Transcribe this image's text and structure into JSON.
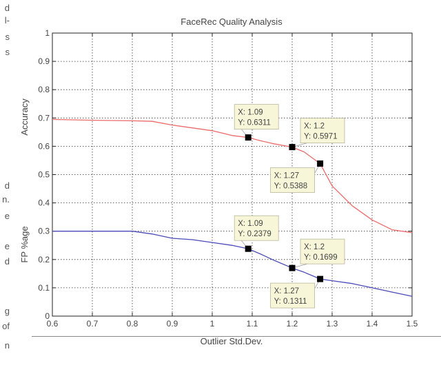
{
  "margin_text": [
    "d",
    "l-",
    "s",
    "s",
    "d",
    "n.",
    "e",
    "e",
    "d",
    "g",
    "of",
    "n"
  ],
  "chart_data": {
    "type": "line",
    "title": "FaceRec Quality Analysis",
    "xlabel": "Outlier Std.Dev.",
    "ylabels": [
      "Accuracy",
      "FP %age"
    ],
    "xlim": [
      0.6,
      1.5
    ],
    "ylim": [
      0,
      1
    ],
    "x_ticks": [
      "0.6",
      "0.7",
      "0.8",
      "0.9",
      "1",
      "1.1",
      "1.2",
      "1.3",
      "1.4",
      "1.5"
    ],
    "y_ticks": [
      "0",
      "0.1",
      "0.2",
      "0.3",
      "0.4",
      "0.5",
      "0.6",
      "0.7",
      "0.8",
      "0.9",
      "1"
    ],
    "grid": true,
    "series": [
      {
        "color": "#ec6a6a",
        "x": [
          0.6,
          0.7,
          0.8,
          0.85,
          0.9,
          0.95,
          1.0,
          1.05,
          1.09,
          1.12,
          1.15,
          1.2,
          1.23,
          1.27,
          1.3,
          1.35,
          1.4,
          1.45,
          1.5
        ],
        "y": [
          0.695,
          0.692,
          0.69,
          0.688,
          0.675,
          0.665,
          0.655,
          0.638,
          0.6311,
          0.62,
          0.61,
          0.5971,
          0.58,
          0.5388,
          0.46,
          0.39,
          0.34,
          0.305,
          0.295
        ]
      },
      {
        "color": "#4a4ab8",
        "x": [
          0.6,
          0.7,
          0.8,
          0.85,
          0.9,
          0.95,
          1.0,
          1.05,
          1.09,
          1.12,
          1.15,
          1.2,
          1.23,
          1.27,
          1.3,
          1.35,
          1.4,
          1.45,
          1.5
        ],
        "y": [
          0.3,
          0.3,
          0.3,
          0.29,
          0.275,
          0.27,
          0.26,
          0.25,
          0.2379,
          0.22,
          0.2,
          0.1699,
          0.155,
          0.1311,
          0.125,
          0.115,
          0.1,
          0.085,
          0.07
        ]
      }
    ],
    "datatips": [
      {
        "x": 1.09,
        "y": 0.6311,
        "label_x": "X: 1.09",
        "label_y": "Y: 0.6311",
        "place": "above-left"
      },
      {
        "x": 1.2,
        "y": 0.5971,
        "label_x": "X: 1.2",
        "label_y": "Y: 0.5971",
        "place": "above-right"
      },
      {
        "x": 1.27,
        "y": 0.5388,
        "label_x": "X: 1.27",
        "label_y": "Y: 0.5388",
        "place": "below-left"
      },
      {
        "x": 1.09,
        "y": 0.2379,
        "label_x": "X: 1.09",
        "label_y": "Y: 0.2379",
        "place": "above-left"
      },
      {
        "x": 1.2,
        "y": 0.1699,
        "label_x": "X: 1.2",
        "label_y": "Y: 0.1699",
        "place": "above-right"
      },
      {
        "x": 1.27,
        "y": 0.1311,
        "label_x": "X: 1.27",
        "label_y": "Y: 0.1311",
        "place": "below-left"
      }
    ]
  }
}
